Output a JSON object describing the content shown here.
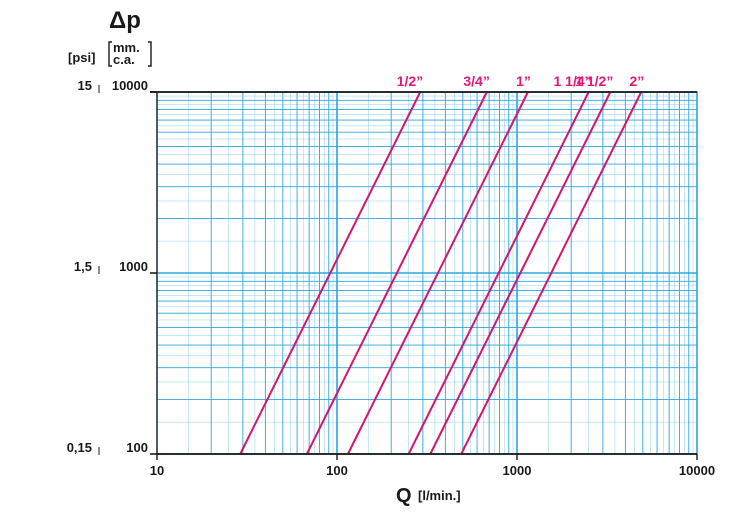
{
  "chart_data": {
    "type": "line",
    "title": "Δp",
    "xlabel_main": "Q",
    "xlabel_unit": "[l/min.]",
    "left_unit": "[psi]",
    "right_unit_1": "mm.",
    "right_unit_2": "c.a.",
    "x_scale": "log",
    "y_scale": "log",
    "xlim": [
      10,
      10000
    ],
    "ylim": [
      100,
      10000
    ],
    "grid": true,
    "x_ticks": [
      {
        "value": 10,
        "label": "10"
      },
      {
        "value": 100,
        "label": "100"
      },
      {
        "value": 1000,
        "label": "1000"
      },
      {
        "value": 10000,
        "label": "10000"
      }
    ],
    "y_ticks": [
      {
        "value": 100,
        "psi": "0,15",
        "mm": "100"
      },
      {
        "value": 1000,
        "psi": "1,5",
        "mm": "1000"
      },
      {
        "value": 10000,
        "psi": "15",
        "mm": "10000"
      }
    ],
    "line_color": "#d4146e",
    "label_color": "#e0187a",
    "grid_color": "#2aa7dd",
    "series": [
      {
        "name": "1/2”",
        "points": [
          [
            29,
            100
          ],
          [
            290,
            10000
          ]
        ]
      },
      {
        "name": "3/4”",
        "points": [
          [
            68,
            100
          ],
          [
            680,
            10000
          ]
        ]
      },
      {
        "name": "1”",
        "points": [
          [
            115,
            100
          ],
          [
            1150,
            10000
          ]
        ]
      },
      {
        "name": "1 1/4”",
        "points": [
          [
            250,
            100
          ],
          [
            2500,
            10000
          ]
        ]
      },
      {
        "name": "1 1/2”",
        "points": [
          [
            330,
            100
          ],
          [
            3300,
            10000
          ]
        ]
      },
      {
        "name": "2”",
        "points": [
          [
            490,
            100
          ],
          [
            4900,
            10000
          ]
        ]
      }
    ]
  }
}
